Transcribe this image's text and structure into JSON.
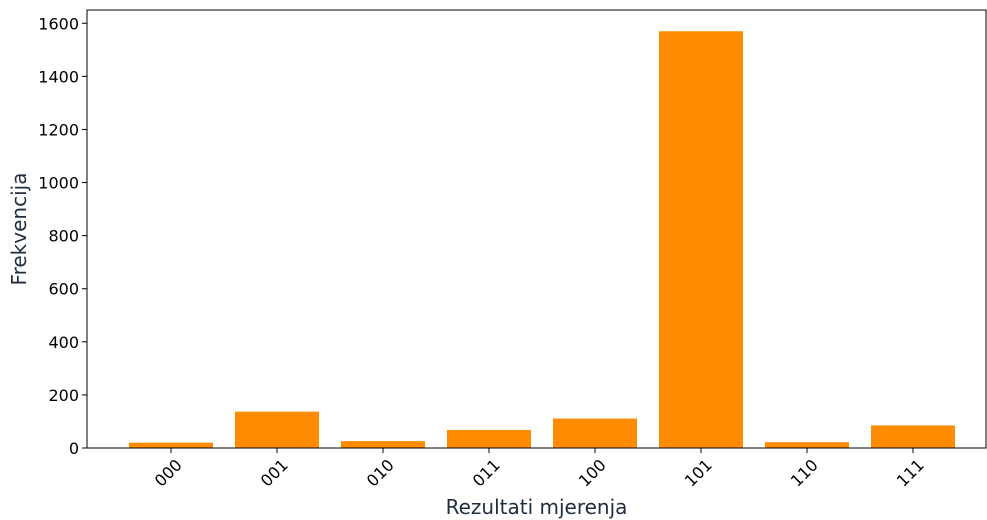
{
  "chart_data": {
    "type": "bar",
    "categories": [
      "000",
      "001",
      "010",
      "011",
      "100",
      "101",
      "110",
      "111"
    ],
    "values": [
      20,
      137,
      26,
      68,
      111,
      1570,
      22,
      85
    ],
    "title": "",
    "xlabel": "Rezultati mjerenja",
    "ylabel": "Frekvencija",
    "ylim": [
      0,
      1650
    ],
    "yticks": [
      0,
      200,
      400,
      600,
      800,
      1000,
      1200,
      1400,
      1600
    ],
    "bar_color": "#ff8c00",
    "grid": false,
    "legend": "none"
  }
}
